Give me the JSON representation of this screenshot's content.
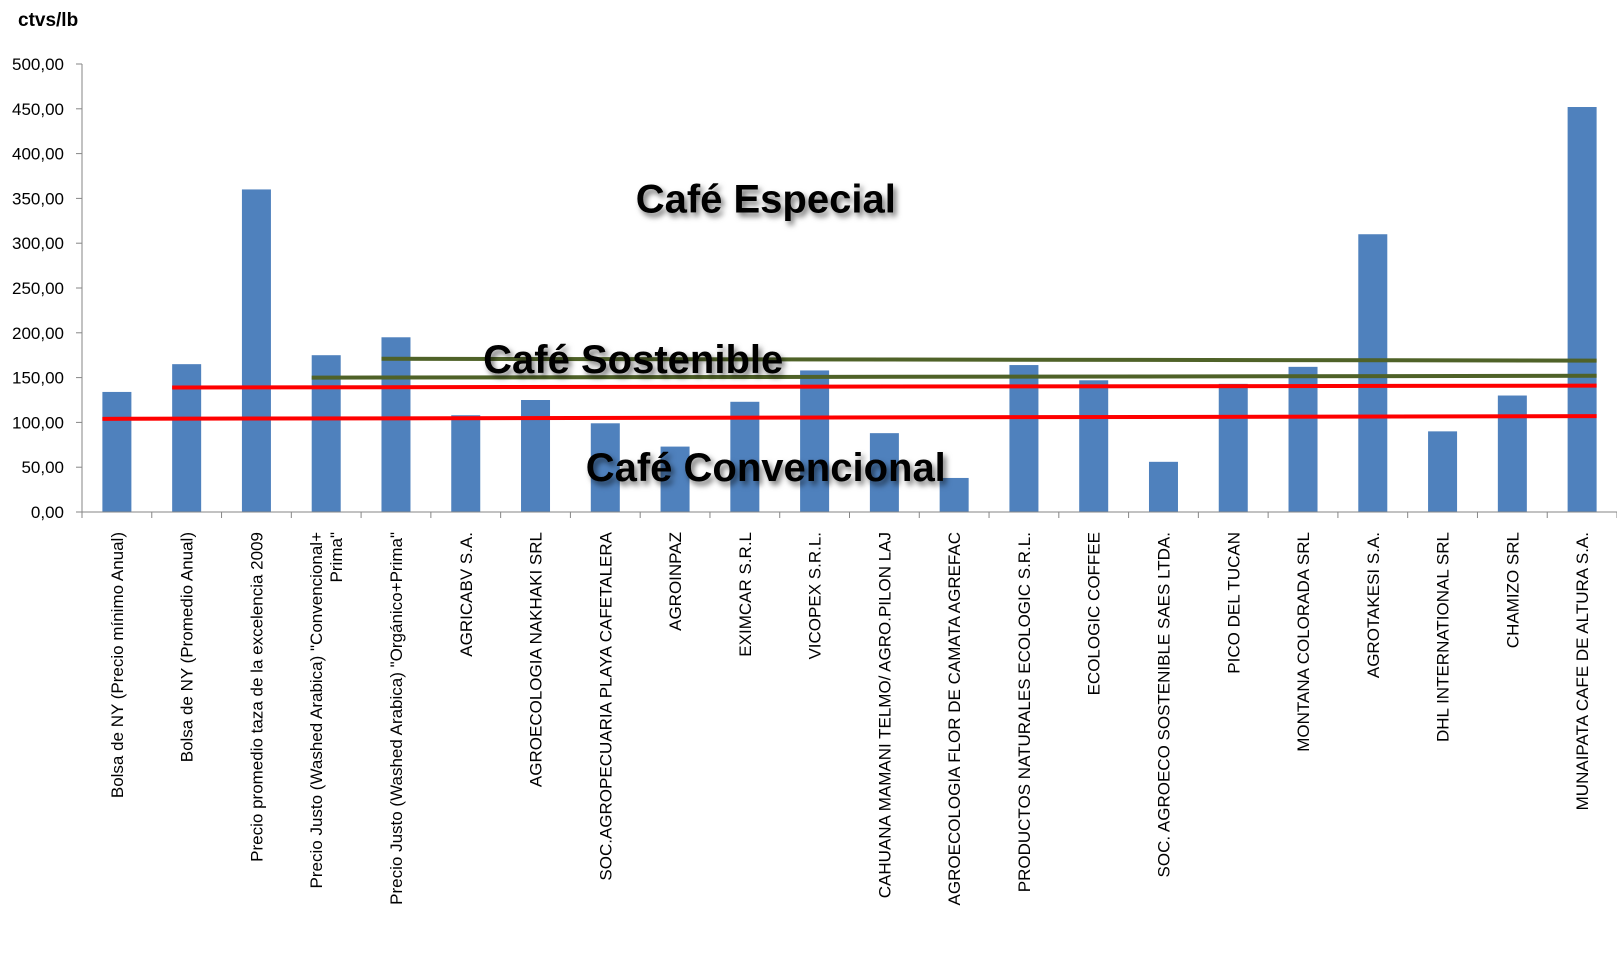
{
  "chart_data": {
    "type": "bar",
    "unit_label": "ctvs/lb",
    "ylim": [
      0,
      500
    ],
    "yticks": [
      "0,00",
      "50,00",
      "100,00",
      "150,00",
      "200,00",
      "250,00",
      "300,00",
      "350,00",
      "400,00",
      "450,00",
      "500,00"
    ],
    "ytick_values": [
      0,
      50,
      100,
      150,
      200,
      250,
      300,
      350,
      400,
      450,
      500
    ],
    "grid": false,
    "bar_color": "#4F81BD",
    "categories": [
      "Bolsa de NY (Precio mínimo Anual)",
      "Bolsa de NY (Promedio Anual)",
      "Precio promedio taza de la excelencia 2009",
      "Precio Justo (Washed Arabica) \"Convencional+ Prima\"",
      "Precio Justo (Washed Arabica) \"Orgánico+Prima\"",
      "AGRICABV S.A.",
      "AGROECOLOGIA NAKHAKI SRL",
      "SOC.AGROPECUARIA PLAYA CAFETALERA",
      "AGROINPAZ",
      "EXIMCAR S.R.L",
      "VICOPEX S.R.L.",
      "CAHUANA MAMANI TELMO/ AGRO.PILON LAJ",
      "AGROECOLOGIA FLOR DE CAMATA AGREFAC",
      "PRODUCTOS NATURALES ECOLOGIC S.R.L.",
      "ECOLOGIC COFFEE",
      "SOC. AGROECO SOSTENIBLE SAES LTDA.",
      "PICO DEL TUCAN",
      "MONTANA COLORADA SRL",
      "AGROTAKESI S.A.",
      "DHL INTERNATIONAL SRL",
      "CHAMIZO SRL",
      "MUNAIPATA CAFE DE ALTURA S.A."
    ],
    "category_lines": [
      [
        "Bolsa de NY (Precio mínimo Anual)"
      ],
      [
        "Bolsa de NY (Promedio Anual)"
      ],
      [
        "Precio promedio taza de la excelencia 2009"
      ],
      [
        "Precio Justo (Washed Arabica) \"Convencional+",
        "Prima\""
      ],
      [
        "Precio Justo (Washed Arabica) \"Orgánico+Prima\""
      ],
      [
        "AGRICABV S.A."
      ],
      [
        "AGROECOLOGIA NAKHAKI SRL"
      ],
      [
        "SOC.AGROPECUARIA PLAYA CAFETALERA"
      ],
      [
        "AGROINPAZ"
      ],
      [
        "EXIMCAR S.R.L"
      ],
      [
        "VICOPEX S.R.L."
      ],
      [
        "CAHUANA MAMANI TELMO/ AGRO.PILON LAJ"
      ],
      [
        "AGROECOLOGIA FLOR DE CAMATA AGREFAC"
      ],
      [
        "PRODUCTOS NATURALES ECOLOGIC S.R.L."
      ],
      [
        "ECOLOGIC COFFEE"
      ],
      [
        "SOC. AGROECO SOSTENIBLE SAES LTDA."
      ],
      [
        "PICO DEL TUCAN"
      ],
      [
        "MONTANA COLORADA SRL"
      ],
      [
        "AGROTAKESI S.A."
      ],
      [
        "DHL INTERNATIONAL SRL"
      ],
      [
        "CHAMIZO SRL"
      ],
      [
        "MUNAIPATA CAFE DE ALTURA S.A."
      ]
    ],
    "values": [
      134,
      165,
      360,
      175,
      195,
      108,
      125,
      99,
      73,
      123,
      158,
      88,
      38,
      164,
      147,
      56,
      143,
      162,
      310,
      90,
      130,
      452
    ],
    "reference_lines": [
      {
        "color": "#FF0000",
        "from_category": 0,
        "to_category": 21,
        "y_start": 104,
        "y_end": 107
      },
      {
        "color": "#FF0000",
        "from_category": 1,
        "to_category": 21,
        "y_start": 139,
        "y_end": 141
      },
      {
        "color": "#4F6228",
        "from_category": 3,
        "to_category": 21,
        "y_start": 150,
        "y_end": 152
      },
      {
        "color": "#4F6228",
        "from_category": 4,
        "to_category": 21,
        "y_start": 171,
        "y_end": 169
      }
    ],
    "annotations": [
      {
        "text": "Café Especial",
        "category": 9.3,
        "y": 350
      },
      {
        "text": "Café Sostenible",
        "category": 7.4,
        "y": 171
      },
      {
        "text": "Café Convencional",
        "category": 9.3,
        "y": 50
      }
    ]
  }
}
